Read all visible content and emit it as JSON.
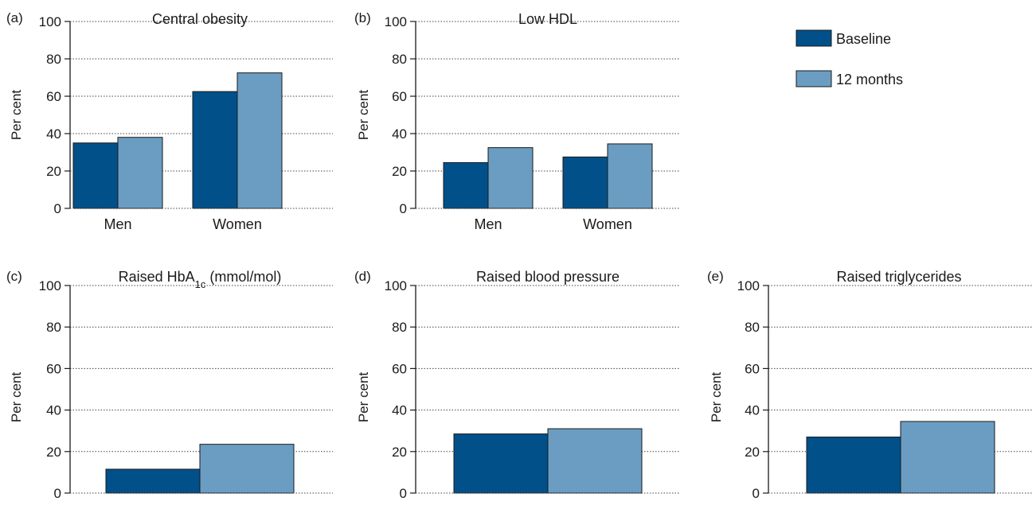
{
  "colors": {
    "baseline": "#02508a",
    "twelve_months": "#6b9dc2",
    "axis": "#1a1a1a"
  },
  "legend": {
    "items": [
      "Baseline",
      "12 months"
    ]
  },
  "chart_data": [
    {
      "panel": "(a)",
      "type": "bar",
      "title": "Central obesity",
      "title_sub": "",
      "title_after": "",
      "ylabel": "Per cent",
      "ylim": [
        0,
        100
      ],
      "yticks": [
        0,
        20,
        40,
        60,
        80,
        100
      ],
      "grid": "dotted horizontal",
      "categories": [
        "Men",
        "Women"
      ],
      "series": [
        {
          "name": "Baseline",
          "values": [
            35,
            62.5
          ]
        },
        {
          "name": "12 months",
          "values": [
            38,
            72.5
          ]
        }
      ]
    },
    {
      "panel": "(b)",
      "type": "bar",
      "title": "Low HDL",
      "title_sub": "",
      "title_after": "",
      "ylabel": "Per cent",
      "ylim": [
        0,
        100
      ],
      "yticks": [
        0,
        20,
        40,
        60,
        80,
        100
      ],
      "grid": "dotted horizontal",
      "categories": [
        "Men",
        "Women"
      ],
      "series": [
        {
          "name": "Baseline",
          "values": [
            24.5,
            27.5
          ]
        },
        {
          "name": "12 months",
          "values": [
            32.5,
            34.5
          ]
        }
      ]
    },
    {
      "panel": "(c)",
      "type": "bar",
      "title": "Raised HbA",
      "title_sub": "1c",
      "title_after": " (mmol/mol)",
      "ylabel": "Per cent",
      "ylim": [
        0,
        100
      ],
      "yticks": [
        0,
        20,
        40,
        60,
        80,
        100
      ],
      "grid": "dotted horizontal",
      "categories": [
        ""
      ],
      "series": [
        {
          "name": "Baseline",
          "values": [
            11.5
          ]
        },
        {
          "name": "12 months",
          "values": [
            23.5
          ]
        }
      ]
    },
    {
      "panel": "(d)",
      "type": "bar",
      "title": "Raised blood pressure",
      "title_sub": "",
      "title_after": "",
      "ylabel": "Per cent",
      "ylim": [
        0,
        100
      ],
      "yticks": [
        0,
        20,
        40,
        60,
        80,
        100
      ],
      "grid": "dotted horizontal",
      "categories": [
        ""
      ],
      "series": [
        {
          "name": "Baseline",
          "values": [
            28.5
          ]
        },
        {
          "name": "12 months",
          "values": [
            31
          ]
        }
      ]
    },
    {
      "panel": "(e)",
      "type": "bar",
      "title": "Raised triglycerides",
      "title_sub": "",
      "title_after": "",
      "ylabel": "Per cent",
      "ylim": [
        0,
        100
      ],
      "yticks": [
        0,
        20,
        40,
        60,
        80,
        100
      ],
      "grid": "dotted horizontal",
      "categories": [
        ""
      ],
      "series": [
        {
          "name": "Baseline",
          "values": [
            27
          ]
        },
        {
          "name": "12 months",
          "values": [
            34.5
          ]
        }
      ]
    }
  ]
}
